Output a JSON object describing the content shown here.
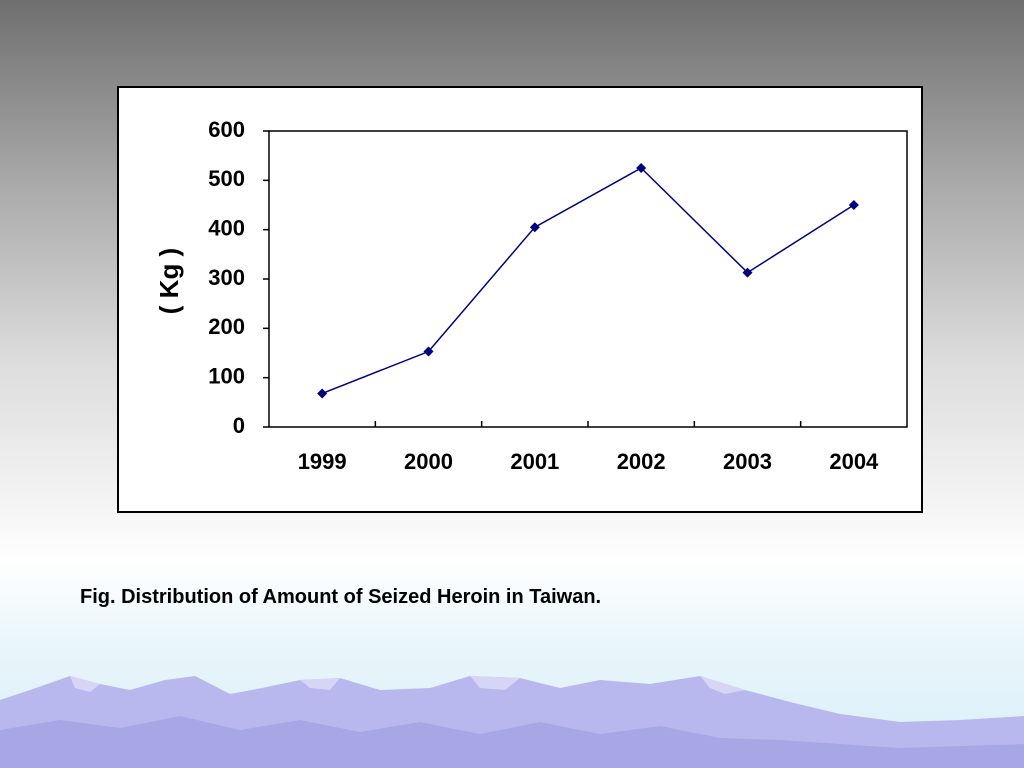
{
  "caption": "Fig.  Distribution of Amount of Seized Heroin in Taiwan.",
  "colors": {
    "series": "#000080",
    "frame": "#000000"
  },
  "chart_data": {
    "type": "line",
    "title": "",
    "xlabel": "",
    "ylabel": "( Kg )",
    "categories": [
      "1999",
      "2000",
      "2001",
      "2002",
      "2003",
      "2004"
    ],
    "series": [
      {
        "values": [
          68,
          153,
          405,
          525,
          313,
          450
        ]
      }
    ],
    "ylim": [
      0,
      600
    ],
    "yticks": [
      0,
      100,
      200,
      300,
      400,
      500,
      600
    ],
    "grid": false,
    "legend": "none",
    "marker": "diamond"
  }
}
